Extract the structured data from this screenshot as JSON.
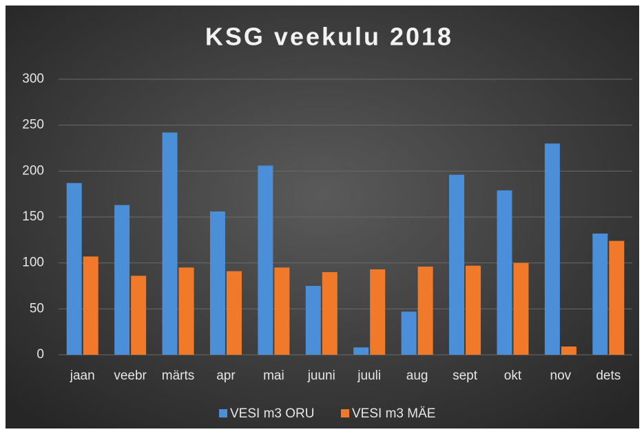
{
  "chart_data": {
    "type": "bar",
    "title": "KSG veekulu 2018",
    "categories": [
      "jaan",
      "veebr",
      "märts",
      "apr",
      "mai",
      "juuni",
      "juuli",
      "aug",
      "sept",
      "okt",
      "nov",
      "dets"
    ],
    "series": [
      {
        "name": "VESI m3 ORU",
        "color": "#4a8fd8",
        "values": [
          187,
          163,
          242,
          156,
          206,
          75,
          8,
          47,
          196,
          179,
          230,
          132
        ]
      },
      {
        "name": "VESI m3 MÄE",
        "color": "#f07a2a",
        "values": [
          107,
          86,
          95,
          91,
          95,
          90,
          93,
          96,
          97,
          100,
          9,
          124
        ]
      }
    ],
    "ylim": [
      0,
      300
    ],
    "yticks": [
      0,
      50,
      100,
      150,
      200,
      250,
      300
    ],
    "grid": true,
    "legend": "bottom"
  }
}
